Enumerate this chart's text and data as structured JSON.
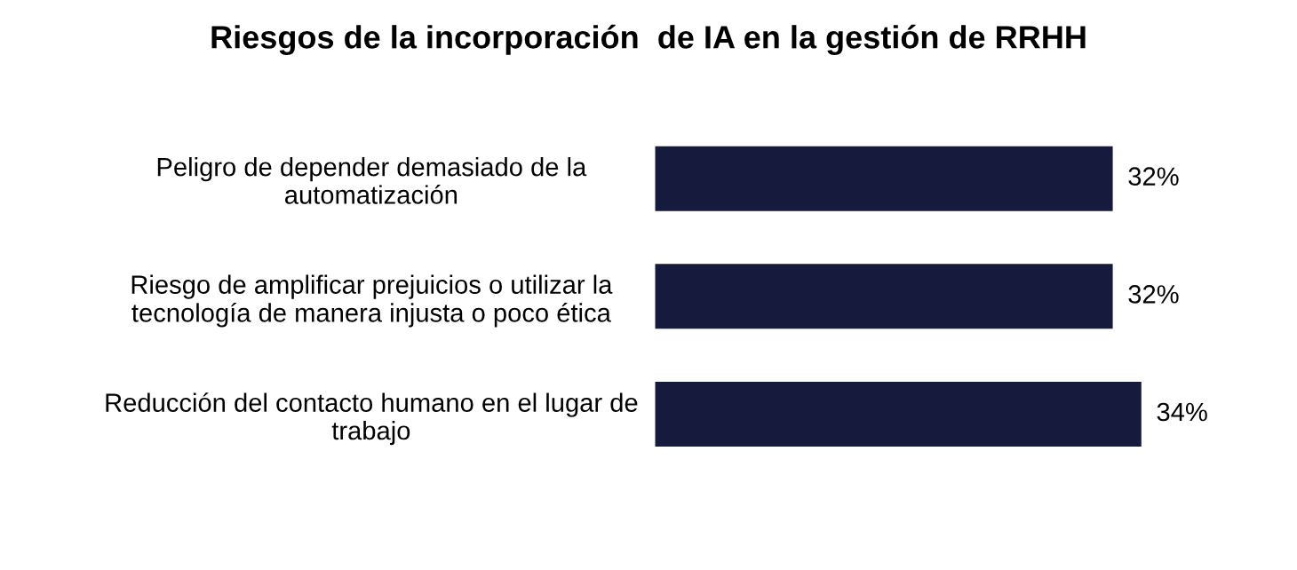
{
  "chart_data": {
    "type": "bar",
    "orientation": "horizontal",
    "title": "Riesgos de la incorporación  de IA en la gestión de RRHH",
    "categories": [
      "Peligro de depender demasiado de la\nautomatización",
      "Riesgo de amplificar prejuicios o utilizar la\ntecnología de manera injusta o poco ética",
      "Reducción del contacto humano en el lugar de\ntrabajo"
    ],
    "values": [
      32,
      32,
      34
    ],
    "color": "#161b3d",
    "data_labels": true,
    "value_labels": [
      "32%",
      "32%",
      "34%"
    ],
    "grid": false,
    "legend": false
  }
}
